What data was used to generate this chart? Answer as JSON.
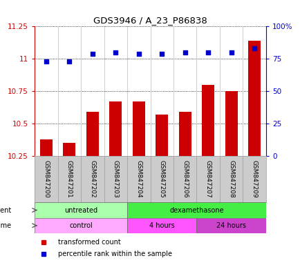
{
  "title": "GDS3946 / A_23_P86838",
  "samples": [
    "GSM847200",
    "GSM847201",
    "GSM847202",
    "GSM847203",
    "GSM847204",
    "GSM847205",
    "GSM847206",
    "GSM847207",
    "GSM847208",
    "GSM847209"
  ],
  "bar_values": [
    10.38,
    10.35,
    10.59,
    10.67,
    10.67,
    10.57,
    10.59,
    10.8,
    10.75,
    11.14
  ],
  "dot_values": [
    73,
    73,
    79,
    80,
    79,
    79,
    80,
    80,
    80,
    83
  ],
  "bar_color": "#cc0000",
  "dot_color": "#0000cc",
  "ymin": 10.25,
  "ymax": 11.25,
  "yticks": [
    10.25,
    10.5,
    10.75,
    11.0,
    11.25
  ],
  "ytick_labels": [
    "10.25",
    "10.5",
    "10.75",
    "11",
    "11.25"
  ],
  "y2min": 0,
  "y2max": 100,
  "y2ticks": [
    0,
    25,
    50,
    75,
    100
  ],
  "y2tick_labels": [
    "0",
    "25",
    "50",
    "75",
    "100%"
  ],
  "agent_groups": [
    {
      "label": "untreated",
      "start": 0,
      "end": 4,
      "color": "#aaffaa"
    },
    {
      "label": "dexamethasone",
      "start": 4,
      "end": 10,
      "color": "#44ee44"
    }
  ],
  "time_groups": [
    {
      "label": "control",
      "start": 0,
      "end": 4,
      "color": "#ffaaff"
    },
    {
      "label": "4 hours",
      "start": 4,
      "end": 7,
      "color": "#ff55ff"
    },
    {
      "label": "24 hours",
      "start": 7,
      "end": 10,
      "color": "#cc44cc"
    }
  ],
  "legend_items": [
    {
      "label": "transformed count",
      "color": "#cc0000"
    },
    {
      "label": "percentile rank within the sample",
      "color": "#0000cc"
    }
  ],
  "agent_label": "agent",
  "time_label": "time"
}
